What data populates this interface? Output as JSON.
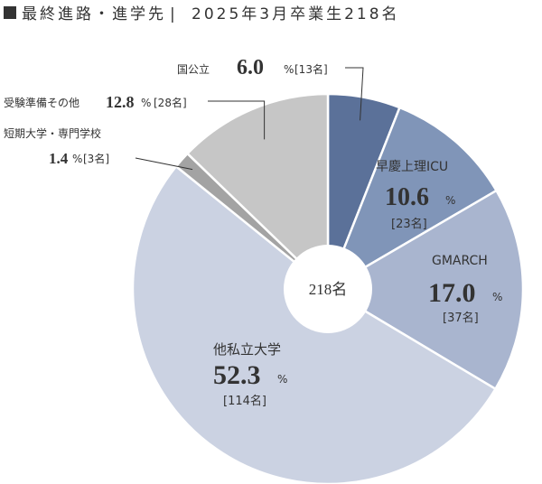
{
  "header": {
    "title": "最終進路・進学先",
    "separator": "|",
    "subtitle": "2025年3月卒業生218名"
  },
  "chart_data": {
    "type": "pie",
    "center_label": "218名",
    "slices": [
      {
        "label": "国公立",
        "percent": 6.0,
        "percent_text": "6.0",
        "count_text": "[13名]",
        "color": "#5b7199"
      },
      {
        "label": "早慶上理ICU",
        "percent": 10.6,
        "percent_text": "10.6",
        "count_text": "[23名]",
        "color": "#8095b8"
      },
      {
        "label": "GMARCH",
        "percent": 17.0,
        "percent_text": "17.0",
        "count_text": "[37名]",
        "color": "#a9b5cf"
      },
      {
        "label": "他私立大学",
        "percent": 52.3,
        "percent_text": "52.3",
        "count_text": "[114名]",
        "color": "#cbd2e2"
      },
      {
        "label": "短期大学・専門学校",
        "percent": 1.4,
        "percent_text": "1.4",
        "count_text": "[3名]",
        "color": "#a3a3a3"
      },
      {
        "label": "受験準備その他",
        "percent": 12.8,
        "percent_text": "12.8",
        "count_text": "[28名]",
        "color": "#c6c6c6"
      }
    ],
    "percent_sign": "%"
  }
}
